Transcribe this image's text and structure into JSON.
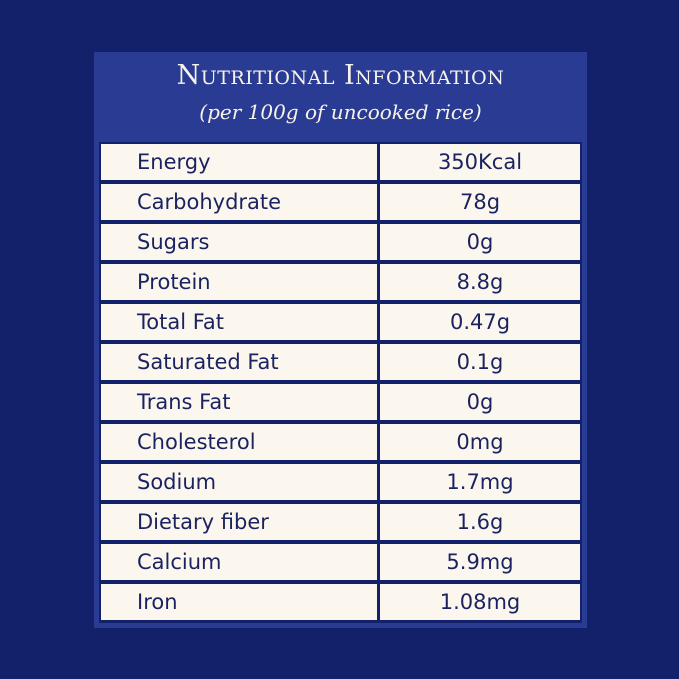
{
  "header": {
    "title": "Nutritional Information",
    "subtitle": "(per 100g of uncooked rice)"
  },
  "nutrition": [
    {
      "name": "Energy",
      "value": "350Kcal"
    },
    {
      "name": "Carbohydrate",
      "value": "78g"
    },
    {
      "name": "Sugars",
      "value": "0g"
    },
    {
      "name": "Protein",
      "value": "8.8g"
    },
    {
      "name": "Total Fat",
      "value": "0.47g"
    },
    {
      "name": "Saturated Fat",
      "value": "0.1g"
    },
    {
      "name": "Trans Fat",
      "value": "0g"
    },
    {
      "name": "Cholesterol",
      "value": "0mg"
    },
    {
      "name": "Sodium",
      "value": "1.7mg"
    },
    {
      "name": "Dietary fiber",
      "value": "1.6g"
    },
    {
      "name": "Calcium",
      "value": "5.9mg"
    },
    {
      "name": "Iron",
      "value": "1.08mg"
    }
  ],
  "colors": {
    "background": "#13206a",
    "panel": "#2a3b93",
    "cell": "#fbf6ee",
    "text": "#1a235f",
    "title_text": "#f6f3ea"
  }
}
